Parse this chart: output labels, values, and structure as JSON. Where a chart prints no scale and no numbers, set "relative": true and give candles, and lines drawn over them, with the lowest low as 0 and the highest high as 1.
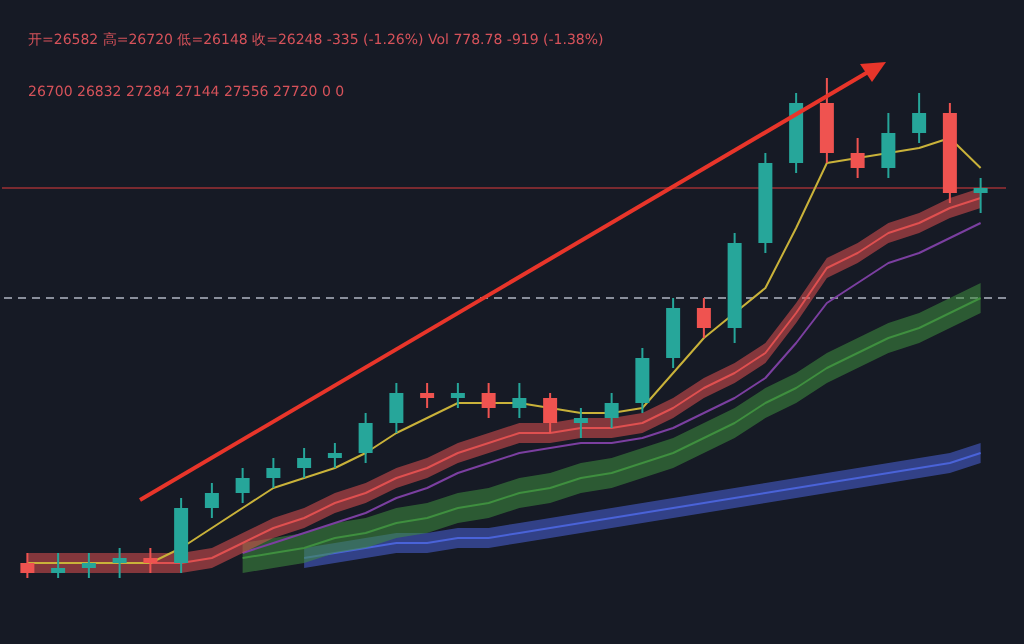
{
  "chart_data": {
    "type": "candlestick",
    "relative": true,
    "annotations": [
      "开=26582 高=26720 低=26148 收=26248 -335 (-1.26%) Vol 778.78 -919 (-1.38%)",
      "26700 26832 27284 27144 27556 27720 0 0"
    ],
    "categories": [
      null,
      null,
      null,
      null,
      null,
      null,
      null,
      null,
      null,
      null,
      null,
      null,
      null,
      null,
      null,
      null,
      null,
      null,
      null,
      null,
      null,
      null,
      null,
      null,
      null,
      null,
      null,
      null,
      null,
      null,
      null,
      null
    ],
    "ohlc": [
      [
        0.03,
        0.05,
        0.0,
        0.01
      ],
      [
        0.01,
        0.05,
        0.0,
        0.02
      ],
      [
        0.02,
        0.05,
        0.0,
        0.03
      ],
      [
        0.03,
        0.06,
        0.0,
        0.04
      ],
      [
        0.04,
        0.06,
        0.01,
        0.03
      ],
      [
        0.03,
        0.16,
        0.01,
        0.14
      ],
      [
        0.14,
        0.19,
        0.12,
        0.17
      ],
      [
        0.17,
        0.22,
        0.15,
        0.2
      ],
      [
        0.2,
        0.24,
        0.18,
        0.22
      ],
      [
        0.22,
        0.26,
        0.2,
        0.24
      ],
      [
        0.24,
        0.27,
        0.22,
        0.25
      ],
      [
        0.25,
        0.33,
        0.23,
        0.31
      ],
      [
        0.31,
        0.39,
        0.29,
        0.37
      ],
      [
        0.37,
        0.39,
        0.34,
        0.36
      ],
      [
        0.36,
        0.39,
        0.34,
        0.37
      ],
      [
        0.37,
        0.39,
        0.32,
        0.34
      ],
      [
        0.34,
        0.39,
        0.32,
        0.36
      ],
      [
        0.36,
        0.37,
        0.29,
        0.31
      ],
      [
        0.31,
        0.34,
        0.28,
        0.32
      ],
      [
        0.32,
        0.37,
        0.3,
        0.35
      ],
      [
        0.35,
        0.46,
        0.33,
        0.44
      ],
      [
        0.44,
        0.56,
        0.42,
        0.54
      ],
      [
        0.54,
        0.56,
        0.48,
        0.5
      ],
      [
        0.5,
        0.69,
        0.47,
        0.67
      ],
      [
        0.67,
        0.85,
        0.65,
        0.83
      ],
      [
        0.83,
        0.97,
        0.81,
        0.95
      ],
      [
        0.95,
        1.0,
        0.83,
        0.85
      ],
      [
        0.85,
        0.88,
        0.8,
        0.82
      ],
      [
        0.82,
        0.93,
        0.8,
        0.89
      ],
      [
        0.89,
        0.97,
        0.87,
        0.93
      ],
      [
        0.93,
        0.95,
        0.75,
        0.77
      ],
      [
        0.77,
        0.8,
        0.73,
        0.78
      ]
    ],
    "series": [
      {
        "type": "line",
        "color": "#4a63d8",
        "values": [
          null,
          null,
          null,
          null,
          null,
          null,
          null,
          null,
          null,
          0.04,
          0.05,
          0.06,
          0.07,
          0.07,
          0.08,
          0.08,
          0.09,
          0.1,
          0.11,
          0.12,
          0.13,
          0.14,
          0.15,
          0.16,
          0.17,
          0.18,
          0.19,
          0.2,
          0.21,
          0.22,
          0.23,
          0.25
        ],
        "lower": [
          null,
          null,
          null,
          null,
          null,
          null,
          null,
          null,
          null,
          0.02,
          0.03,
          0.04,
          0.05,
          0.05,
          0.06,
          0.06,
          0.07,
          0.08,
          0.09,
          0.1,
          0.11,
          0.12,
          0.13,
          0.14,
          0.15,
          0.16,
          0.17,
          0.18,
          0.19,
          0.2,
          0.21,
          0.23
        ],
        "upper": [
          null,
          null,
          null,
          null,
          null,
          null,
          null,
          null,
          null,
          0.06,
          0.07,
          0.08,
          0.09,
          0.09,
          0.1,
          0.1,
          0.11,
          0.12,
          0.13,
          0.14,
          0.15,
          0.16,
          0.17,
          0.18,
          0.19,
          0.2,
          0.21,
          0.22,
          0.23,
          0.24,
          0.25,
          0.27
        ]
      },
      {
        "type": "line",
        "color": "#3f8f3f",
        "values": [
          null,
          null,
          null,
          null,
          null,
          null,
          null,
          0.04,
          0.05,
          0.06,
          0.08,
          0.09,
          0.11,
          0.12,
          0.14,
          0.15,
          0.17,
          0.18,
          0.2,
          0.21,
          0.23,
          0.25,
          0.28,
          0.31,
          0.35,
          0.38,
          0.42,
          0.45,
          0.48,
          0.5,
          0.53,
          0.56
        ],
        "lower": [
          null,
          null,
          null,
          null,
          null,
          null,
          null,
          0.01,
          0.02,
          0.03,
          0.05,
          0.06,
          0.08,
          0.09,
          0.11,
          0.12,
          0.14,
          0.15,
          0.17,
          0.18,
          0.2,
          0.22,
          0.25,
          0.28,
          0.32,
          0.35,
          0.39,
          0.42,
          0.45,
          0.47,
          0.5,
          0.53
        ],
        "upper": [
          null,
          null,
          null,
          null,
          null,
          null,
          null,
          0.07,
          0.08,
          0.09,
          0.11,
          0.12,
          0.14,
          0.15,
          0.17,
          0.18,
          0.2,
          0.21,
          0.23,
          0.24,
          0.26,
          0.28,
          0.31,
          0.34,
          0.38,
          0.41,
          0.45,
          0.48,
          0.51,
          0.53,
          0.56,
          0.59
        ]
      },
      {
        "type": "line",
        "color": "#7b3fa0",
        "values": [
          null,
          null,
          null,
          null,
          null,
          null,
          null,
          0.05,
          0.07,
          0.09,
          0.11,
          0.13,
          0.16,
          0.18,
          0.21,
          0.23,
          0.25,
          0.26,
          0.27,
          0.27,
          0.28,
          0.3,
          0.33,
          0.36,
          0.4,
          0.47,
          0.55,
          0.59,
          0.63,
          0.65,
          0.68,
          0.71
        ]
      },
      {
        "type": "line",
        "color": "#e05050",
        "values": [
          0.03,
          0.03,
          0.03,
          0.03,
          0.03,
          0.03,
          0.04,
          0.07,
          0.1,
          0.12,
          0.15,
          0.17,
          0.2,
          0.22,
          0.25,
          0.27,
          0.29,
          0.29,
          0.3,
          0.3,
          0.31,
          0.34,
          0.38,
          0.41,
          0.45,
          0.53,
          0.62,
          0.65,
          0.69,
          0.71,
          0.74,
          0.76
        ],
        "lower": [
          0.01,
          0.01,
          0.01,
          0.01,
          0.01,
          0.01,
          0.02,
          0.05,
          0.08,
          0.1,
          0.13,
          0.15,
          0.18,
          0.2,
          0.23,
          0.25,
          0.27,
          0.27,
          0.28,
          0.28,
          0.29,
          0.32,
          0.36,
          0.39,
          0.43,
          0.51,
          0.6,
          0.63,
          0.67,
          0.69,
          0.72,
          0.74
        ],
        "upper": [
          0.05,
          0.05,
          0.05,
          0.05,
          0.05,
          0.05,
          0.06,
          0.09,
          0.12,
          0.14,
          0.17,
          0.19,
          0.22,
          0.24,
          0.27,
          0.29,
          0.31,
          0.31,
          0.32,
          0.32,
          0.33,
          0.36,
          0.4,
          0.43,
          0.47,
          0.55,
          0.64,
          0.67,
          0.71,
          0.73,
          0.76,
          0.78
        ]
      },
      {
        "type": "line",
        "color": "#c9b23a",
        "values": [
          0.03,
          0.03,
          0.03,
          0.03,
          0.03,
          0.06,
          0.1,
          0.14,
          0.18,
          0.2,
          0.22,
          0.25,
          0.29,
          0.32,
          0.35,
          0.35,
          0.35,
          0.34,
          0.33,
          0.33,
          0.34,
          0.41,
          0.48,
          0.53,
          0.58,
          0.7,
          0.83,
          0.84,
          0.85,
          0.86,
          0.88,
          0.82
        ]
      }
    ],
    "ref_lines": [
      {
        "axis": "y",
        "value": 0.56,
        "color": "#8a8f9c",
        "line_style": "dashed"
      },
      {
        "axis": "y",
        "value": 0.78,
        "color": "#7a2a30",
        "line_style": "solid"
      }
    ]
  }
}
